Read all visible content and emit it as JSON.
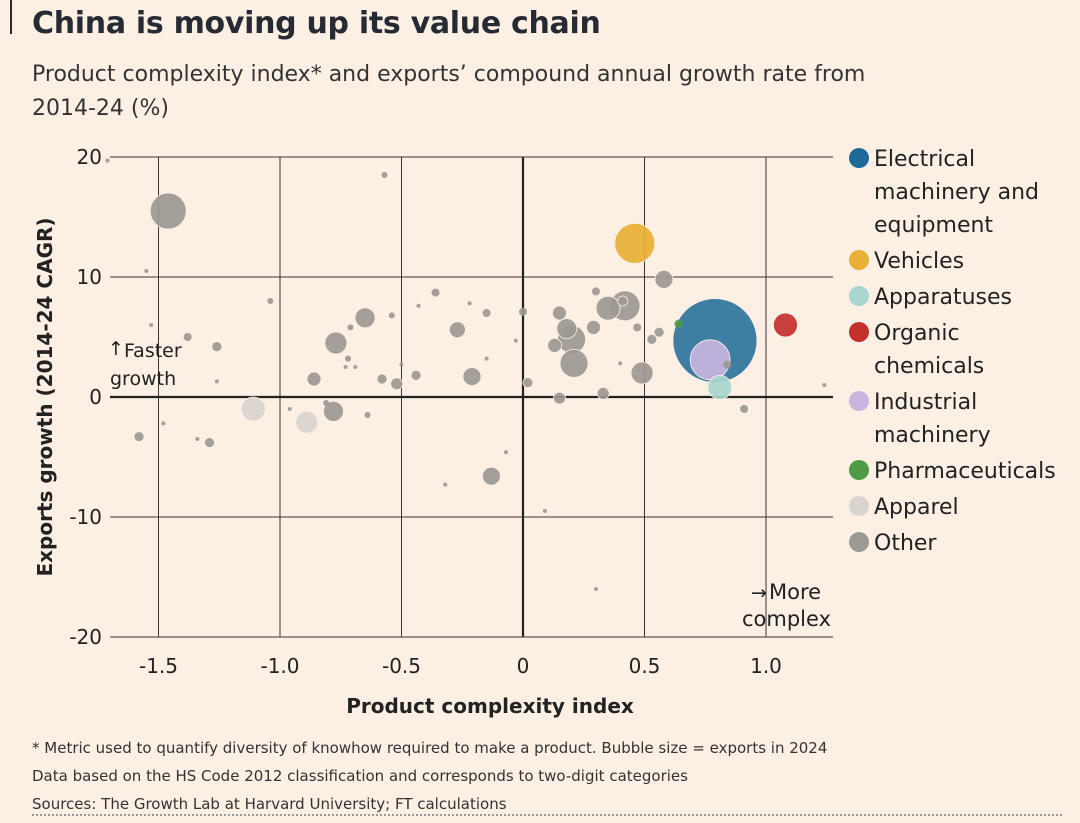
{
  "title": "China is moving up its value chain",
  "subtitle": "Product complexity index* and exports’ compound annual growth rate from 2014-24 (%)",
  "footnotes": [
    "* Metric used to quantify diversity of knowhow required to make a product. Bubble size = exports in 2024",
    "Data based on the HS Code 2012 classification and corresponds to two-digit categories",
    "Sources: The Growth Lab at Harvard University; FT calculations"
  ],
  "chart_data": {
    "type": "scatter",
    "title": "China is moving up its value chain",
    "xlabel": "Product complexity index",
    "ylabel": "Exports growth (2014-24 CAGR)",
    "xlim": [
      -1.72,
      1.28
    ],
    "ylim": [
      -20,
      20
    ],
    "xticks": [
      -1.5,
      -1.0,
      -0.5,
      0,
      0.5,
      1.0
    ],
    "xtick_labels": [
      "-1.5",
      "-1.0",
      "-0.5",
      "0",
      "0.5",
      "1.0"
    ],
    "yticks": [
      -20,
      -10,
      0,
      10,
      20
    ],
    "ytick_labels": [
      "-20",
      "-10",
      "0",
      "10",
      "20"
    ],
    "annotations": {
      "faster": "Faster",
      "growth": "growth",
      "more": "More",
      "complex": "complex"
    },
    "legend": [
      {
        "name": "Electrical machinery and equipment",
        "lines": [
          "Electrical",
          "machinery and",
          "equipment"
        ],
        "color": "#1d6a98"
      },
      {
        "name": "Vehicles",
        "lines": [
          "Vehicles"
        ],
        "color": "#e8b034"
      },
      {
        "name": "Apparatuses",
        "lines": [
          "Apparatuses"
        ],
        "color": "#a9d6cf"
      },
      {
        "name": "Organic chemicals",
        "lines": [
          "Organic",
          "chemicals"
        ],
        "color": "#c4302c"
      },
      {
        "name": "Industrial machinery",
        "lines": [
          "Industrial",
          "machinery"
        ],
        "color": "#c8b5e0"
      },
      {
        "name": "Pharmaceuticals",
        "lines": [
          "Pharmaceuticals"
        ],
        "color": "#4f9a44"
      },
      {
        "name": "Apparel",
        "lines": [
          "Apparel"
        ],
        "color": "#d9d4cf"
      },
      {
        "name": "Other",
        "lines": [
          "Other"
        ],
        "color": "#9c9893"
      }
    ],
    "points": [
      {
        "x": -1.46,
        "y": 15.5,
        "size": 18,
        "cat": "Other"
      },
      {
        "x": -1.71,
        "y": 19.7,
        "size": 2,
        "cat": "Other"
      },
      {
        "x": -1.55,
        "y": 10.5,
        "size": 2,
        "cat": "Other"
      },
      {
        "x": -1.53,
        "y": 6.0,
        "size": 2,
        "cat": "Other"
      },
      {
        "x": -1.38,
        "y": 5.0,
        "size": 4,
        "cat": "Other"
      },
      {
        "x": -1.26,
        "y": 4.2,
        "size": 5,
        "cat": "Other"
      },
      {
        "x": -1.26,
        "y": 1.3,
        "size": 2,
        "cat": "Other"
      },
      {
        "x": -1.04,
        "y": 8.0,
        "size": 3,
        "cat": "Other"
      },
      {
        "x": -1.58,
        "y": -3.3,
        "size": 5,
        "cat": "Other"
      },
      {
        "x": -1.48,
        "y": -2.2,
        "size": 2,
        "cat": "Other"
      },
      {
        "x": -1.34,
        "y": -3.5,
        "size": 2,
        "cat": "Other"
      },
      {
        "x": -1.29,
        "y": -3.8,
        "size": 5,
        "cat": "Other"
      },
      {
        "x": -0.96,
        "y": -1.0,
        "size": 2,
        "cat": "Other"
      },
      {
        "x": -0.86,
        "y": 1.5,
        "size": 7,
        "cat": "Other"
      },
      {
        "x": -0.77,
        "y": 4.5,
        "size": 11,
        "cat": "Other"
      },
      {
        "x": -0.71,
        "y": 5.8,
        "size": 3,
        "cat": "Other"
      },
      {
        "x": -0.65,
        "y": 6.6,
        "size": 10,
        "cat": "Other"
      },
      {
        "x": -0.72,
        "y": 3.2,
        "size": 3,
        "cat": "Other"
      },
      {
        "x": -0.69,
        "y": 2.5,
        "size": 2,
        "cat": "Other"
      },
      {
        "x": -0.73,
        "y": 2.5,
        "size": 2,
        "cat": "Other"
      },
      {
        "x": -0.78,
        "y": -1.2,
        "size": 10,
        "cat": "Other"
      },
      {
        "x": -0.81,
        "y": -0.5,
        "size": 3,
        "cat": "Other"
      },
      {
        "x": -0.64,
        "y": -1.5,
        "size": 3,
        "cat": "Other"
      },
      {
        "x": -0.57,
        "y": 18.5,
        "size": 3,
        "cat": "Other"
      },
      {
        "x": -0.54,
        "y": 6.8,
        "size": 3,
        "cat": "Other"
      },
      {
        "x": -0.58,
        "y": 1.5,
        "size": 5,
        "cat": "Other"
      },
      {
        "x": -0.52,
        "y": 1.1,
        "size": 6,
        "cat": "Other"
      },
      {
        "x": -0.5,
        "y": 2.7,
        "size": 2,
        "cat": "Other"
      },
      {
        "x": -0.44,
        "y": 1.8,
        "size": 5,
        "cat": "Other"
      },
      {
        "x": -0.43,
        "y": 7.6,
        "size": 2,
        "cat": "Other"
      },
      {
        "x": -0.36,
        "y": 8.7,
        "size": 4,
        "cat": "Other"
      },
      {
        "x": -0.27,
        "y": 5.6,
        "size": 8,
        "cat": "Other"
      },
      {
        "x": -0.22,
        "y": 7.8,
        "size": 2,
        "cat": "Other"
      },
      {
        "x": -0.15,
        "y": 7.0,
        "size": 4,
        "cat": "Other"
      },
      {
        "x": -0.21,
        "y": 1.7,
        "size": 9,
        "cat": "Other"
      },
      {
        "x": -0.15,
        "y": 3.2,
        "size": 2,
        "cat": "Other"
      },
      {
        "x": -0.13,
        "y": -6.6,
        "size": 9,
        "cat": "Other"
      },
      {
        "x": -0.07,
        "y": -4.6,
        "size": 2,
        "cat": "Other"
      },
      {
        "x": -0.32,
        "y": -7.3,
        "size": 2,
        "cat": "Other"
      },
      {
        "x": -0.03,
        "y": 4.7,
        "size": 2,
        "cat": "Other"
      },
      {
        "x": 0.0,
        "y": 7.1,
        "size": 4,
        "cat": "Other"
      },
      {
        "x": 0.02,
        "y": 1.2,
        "size": 5,
        "cat": "Other"
      },
      {
        "x": 0.15,
        "y": 7.0,
        "size": 7,
        "cat": "Other"
      },
      {
        "x": 0.18,
        "y": 5.7,
        "size": 10,
        "cat": "Other"
      },
      {
        "x": 0.13,
        "y": 4.3,
        "size": 7,
        "cat": "Other"
      },
      {
        "x": 0.2,
        "y": 4.8,
        "size": 14,
        "cat": "Other"
      },
      {
        "x": 0.21,
        "y": 2.8,
        "size": 14,
        "cat": "Other"
      },
      {
        "x": 0.29,
        "y": 5.8,
        "size": 7,
        "cat": "Other"
      },
      {
        "x": 0.35,
        "y": 7.4,
        "size": 12,
        "cat": "Other"
      },
      {
        "x": 0.42,
        "y": 7.6,
        "size": 15,
        "cat": "Other"
      },
      {
        "x": 0.41,
        "y": 8.0,
        "size": 5,
        "cat": "Other"
      },
      {
        "x": 0.3,
        "y": 8.8,
        "size": 4,
        "cat": "Other"
      },
      {
        "x": 0.47,
        "y": 5.8,
        "size": 4,
        "cat": "Other"
      },
      {
        "x": 0.53,
        "y": 4.8,
        "size": 5,
        "cat": "Other"
      },
      {
        "x": 0.56,
        "y": 5.4,
        "size": 5,
        "cat": "Other"
      },
      {
        "x": 0.58,
        "y": 9.8,
        "size": 9,
        "cat": "Other"
      },
      {
        "x": 0.49,
        "y": 2.0,
        "size": 11,
        "cat": "Other"
      },
      {
        "x": 0.4,
        "y": 2.8,
        "size": 2,
        "cat": "Other"
      },
      {
        "x": 0.33,
        "y": 0.3,
        "size": 6,
        "cat": "Other"
      },
      {
        "x": 0.15,
        "y": -0.1,
        "size": 6,
        "cat": "Other"
      },
      {
        "x": 0.09,
        "y": -9.5,
        "size": 2,
        "cat": "Other"
      },
      {
        "x": 0.3,
        "y": -16.0,
        "size": 2,
        "cat": "Other"
      },
      {
        "x": 0.91,
        "y": -1.0,
        "size": 4,
        "cat": "Other"
      },
      {
        "x": 1.24,
        "y": 1.0,
        "size": 2,
        "cat": "Other"
      },
      {
        "x": 0.84,
        "y": 2.7,
        "size": 4,
        "cat": "Other"
      },
      {
        "x": -1.11,
        "y": -1.0,
        "size": 12,
        "cat": "Apparel"
      },
      {
        "x": -0.89,
        "y": -2.1,
        "size": 11,
        "cat": "Apparel"
      },
      {
        "x": 0.46,
        "y": 12.8,
        "size": 20,
        "cat": "Vehicles"
      },
      {
        "x": 0.77,
        "y": 3.1,
        "size": 20,
        "cat": "Industrial machinery"
      },
      {
        "x": 0.81,
        "y": 0.8,
        "size": 12,
        "cat": "Apparatuses"
      },
      {
        "x": 0.64,
        "y": 6.1,
        "size": 4,
        "cat": "Pharmaceuticals"
      },
      {
        "x": 0.79,
        "y": 4.7,
        "size": 42,
        "cat": "Electrical machinery and equipment"
      },
      {
        "x": 1.08,
        "y": 6.0,
        "size": 12,
        "cat": "Organic chemicals"
      }
    ]
  }
}
